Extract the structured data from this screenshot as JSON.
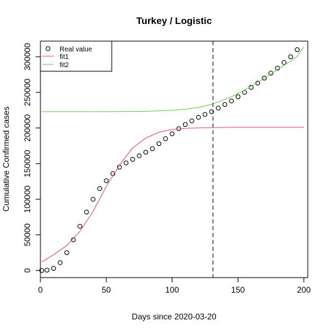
{
  "chart_data": {
    "type": "scatter",
    "title": "Turkey / Logistic",
    "xlabel": "Days since 2020-03-20",
    "ylabel": "Cumulative Confirmed cases",
    "xlim": [
      0,
      203
    ],
    "ylim": [
      -10000,
      322000
    ],
    "x_ticks": [
      0,
      50,
      100,
      150,
      200
    ],
    "x_tick_labels": [
      "0",
      "50",
      "100",
      "150",
      "200"
    ],
    "y_ticks": [
      0,
      50000,
      100000,
      150000,
      200000,
      250000,
      300000
    ],
    "y_tick_labels": [
      "0",
      "50000",
      "100000",
      "150000",
      "200000",
      "250000",
      "300000"
    ],
    "vline": {
      "x": 131,
      "style": "dashed",
      "color": "#555555"
    },
    "legend": {
      "position": "top-left",
      "entries": [
        {
          "label": "Real value",
          "marker": "circle",
          "color": "#000000"
        },
        {
          "label": "fit1",
          "marker": "line",
          "color": "#DF536B"
        },
        {
          "label": "fit2",
          "marker": "line",
          "color": "#61D04F"
        }
      ]
    },
    "series": [
      {
        "name": "Real value",
        "kind": "points",
        "color": "#000000",
        "x": [
          1,
          5,
          10,
          15,
          20,
          25,
          30,
          35,
          40,
          45,
          50,
          55,
          60,
          65,
          70,
          75,
          80,
          85,
          90,
          95,
          100,
          105,
          110,
          115,
          120,
          125,
          130,
          135,
          140,
          145,
          150,
          155,
          160,
          165,
          170,
          175,
          180,
          185,
          190,
          195
        ],
        "y": [
          0,
          500,
          3000,
          11000,
          25000,
          43000,
          62000,
          82000,
          100000,
          115000,
          126000,
          136000,
          145000,
          151000,
          156000,
          161000,
          166000,
          171000,
          178000,
          185000,
          192000,
          199000,
          205000,
          210000,
          215000,
          219000,
          223000,
          228000,
          233000,
          238000,
          244000,
          250000,
          257000,
          263000,
          270000,
          277000,
          284000,
          292000,
          300000,
          310000
        ]
      },
      {
        "name": "fit1",
        "kind": "line",
        "color": "#DF536B",
        "x": [
          1,
          10,
          20,
          30,
          40,
          50,
          60,
          70,
          80,
          90,
          100,
          110,
          120,
          130,
          140,
          150,
          160,
          170,
          180,
          190,
          200
        ],
        "y": [
          12000,
          22000,
          35000,
          55000,
          83000,
          118000,
          148000,
          172000,
          186000,
          194000,
          198000,
          199500,
          200200,
          200600,
          200800,
          200900,
          201000,
          201000,
          201000,
          201000,
          201000
        ]
      },
      {
        "name": "fit2",
        "kind": "line",
        "color": "#61D04F",
        "x": [
          1,
          20,
          40,
          60,
          80,
          90,
          100,
          110,
          115,
          120,
          125,
          130,
          135,
          140,
          145,
          150,
          155,
          160,
          165,
          170,
          175,
          180,
          185,
          190,
          195,
          200
        ],
        "y": [
          223000,
          223000,
          223000,
          223100,
          223500,
          224000,
          224800,
          226300,
          227500,
          229000,
          231000,
          233500,
          236500,
          240000,
          244000,
          248500,
          253500,
          258800,
          264300,
          270000,
          276000,
          282000,
          288000,
          294000,
          300500,
          314000
        ]
      }
    ]
  }
}
